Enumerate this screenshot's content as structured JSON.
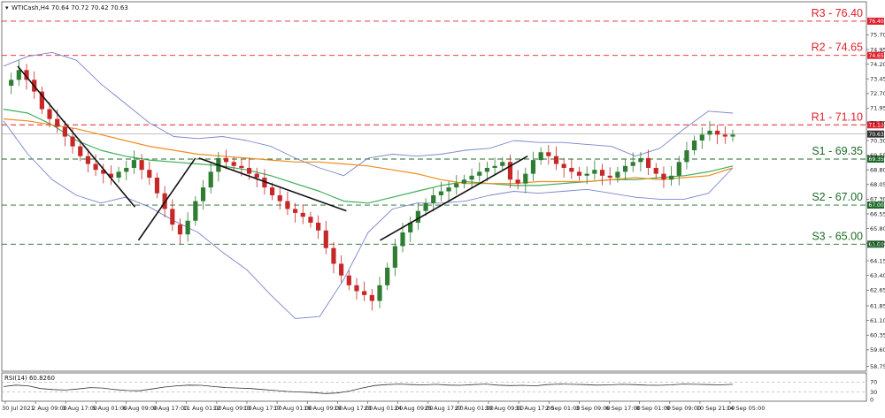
{
  "header": {
    "symbol": "WTICash,H4",
    "ohlc": "70.64 70.72 70.42 70.63"
  },
  "rsi": {
    "label": "RSI(14) 60.8260",
    "ticks": [
      "70",
      "30",
      "0"
    ]
  },
  "colors": {
    "bullish": "#2e7d32",
    "bearish": "#c62828",
    "bollinger": "#7b83c9",
    "ma_orange": "#f08c1e",
    "ma_green": "#3fae5a",
    "resistance": "#e0202a",
    "support": "#1f6b2a",
    "trendline": "#111111"
  },
  "chart_data": {
    "type": "candlestick",
    "y_axis_ticks": [
      "75.70",
      "74.95",
      "74.20",
      "73.45",
      "72.70",
      "71.95",
      "71.20",
      "70.30",
      "69.55",
      "68.80",
      "68.05",
      "67.30",
      "66.55",
      "65.80",
      "65.05",
      "64.15",
      "63.40",
      "62.65",
      "61.85",
      "61.10",
      "60.35",
      "59.60",
      "58.75"
    ],
    "y_range": [
      58.6,
      77.3
    ],
    "x_axis_ticks": [
      "30 Jul 2021",
      "2 Aug 09:00",
      "3 Aug 17:00",
      "5 Aug 01:00",
      "6 Aug 09:00",
      "9 Aug 17:00",
      "11 Aug 01:00",
      "12 Aug 09:00",
      "13 Aug 17:00",
      "17 Aug 01:00",
      "18 Aug 09:00",
      "19 Aug 17:00",
      "23 Aug 01:00",
      "24 Aug 09:00",
      "25 Aug 17:00",
      "27 Aug 01:00",
      "30 Aug 09:00",
      "31 Aug 17:00",
      "2 Sep 01:00",
      "3 Sep 09:00",
      "6 Sep 17:00",
      "8 Sep 01:00",
      "9 Sep 09:00",
      "10 Sep 21:00",
      "14 Sep 05:00"
    ],
    "levels": [
      {
        "label": "R3 - 76.40",
        "value": 76.4,
        "tag": "76.40",
        "kind": "resistance"
      },
      {
        "label": "R2 - 74.65",
        "value": 74.65,
        "tag": "74.65",
        "kind": "resistance"
      },
      {
        "label": "R1 - 71.10",
        "value": 71.1,
        "tag": "71.10",
        "kind": "resistance"
      },
      {
        "label": "S1 - 69.35",
        "value": 69.35,
        "tag": "69.35",
        "kind": "support"
      },
      {
        "label": "S2 - 67.00",
        "value": 67.0,
        "tag": "67.00",
        "kind": "support"
      },
      {
        "label": "S3 - 65.00",
        "value": 65.0,
        "tag": "65.00",
        "kind": "support"
      }
    ],
    "last_price": {
      "value": 70.63,
      "tag": "70.63"
    },
    "close_path": [
      73.1,
      73.4,
      73.9,
      73.4,
      72.8,
      71.9,
      71.4,
      71.0,
      70.5,
      70.0,
      69.5,
      69.1,
      68.8,
      68.6,
      68.4,
      68.7,
      68.9,
      69.3,
      68.8,
      68.4,
      67.6,
      66.8,
      66.0,
      65.5,
      66.2,
      67.2,
      67.9,
      68.7,
      69.4,
      69.2,
      69.0,
      68.9,
      68.6,
      68.4,
      67.9,
      67.5,
      67.2,
      66.8,
      66.6,
      66.4,
      66.1,
      65.7,
      64.8,
      64.0,
      63.4,
      62.9,
      62.6,
      62.4,
      62.1,
      62.9,
      63.8,
      64.9,
      65.6,
      66.1,
      66.7,
      67.1,
      67.5,
      67.7,
      67.9,
      68.1,
      68.3,
      68.5,
      68.7,
      68.9,
      69.0,
      69.2,
      68.3,
      68.1,
      68.6,
      69.3,
      69.7,
      69.5,
      69.1,
      68.9,
      68.7,
      68.5,
      68.6,
      68.8,
      68.5,
      68.4,
      68.7,
      69.0,
      69.2,
      69.4,
      68.9,
      68.6,
      68.3,
      68.5,
      69.2,
      69.8,
      70.3,
      70.6,
      70.8,
      70.6,
      70.5,
      70.6
    ],
    "ma_orange": [
      71.4,
      71.3,
      71.1,
      70.9,
      70.6,
      70.3,
      70.0,
      69.8,
      69.6,
      69.5,
      69.4,
      69.3,
      69.2,
      69.2,
      69.1,
      69.0,
      68.8,
      68.6,
      68.3,
      68.1,
      68.1,
      68.1,
      68.2,
      68.2,
      68.2,
      68.3,
      68.4,
      68.3,
      68.4,
      68.5,
      68.9
    ],
    "ma_green": [
      71.9,
      71.7,
      71.1,
      70.3,
      69.8,
      69.5,
      69.3,
      69.2,
      69.1,
      69.0,
      68.8,
      68.5,
      68.1,
      67.7,
      67.2,
      67.1,
      67.4,
      67.7,
      68.0,
      68.2,
      68.1,
      68.0,
      68.0,
      68.1,
      68.2,
      68.3,
      68.3,
      68.4,
      68.5,
      68.7,
      69.0
    ],
    "bb_upper": [
      74.1,
      74.6,
      74.8,
      74.4,
      73.2,
      72.2,
      71.2,
      70.5,
      70.4,
      70.5,
      70.3,
      70.0,
      69.4,
      68.9,
      68.5,
      69.4,
      69.6,
      69.5,
      69.6,
      69.8,
      69.9,
      70.3,
      70.2,
      70.2,
      70.1,
      70.0,
      69.5,
      69.9,
      70.9,
      71.8,
      71.7
    ],
    "bb_lower": [
      71.3,
      69.6,
      68.3,
      67.5,
      67.1,
      67.4,
      66.9,
      66.2,
      65.6,
      64.6,
      63.7,
      62.4,
      61.2,
      61.3,
      63.2,
      65.6,
      66.8,
      67.1,
      67.1,
      67.2,
      67.5,
      67.7,
      67.6,
      67.7,
      67.8,
      67.6,
      67.4,
      67.3,
      67.3,
      67.6,
      68.9
    ],
    "trendlines": [
      {
        "from": [
          "30 Jul 2021",
          74.1
        ],
        "to": [
          "6 Aug 09:00",
          66.9
        ]
      },
      {
        "from": [
          "6 Aug 09:00",
          65.2
        ],
        "to": [
          "11 Aug 01:00",
          69.4
        ]
      },
      {
        "from": [
          "11 Aug 01:00",
          69.4
        ],
        "to": [
          "19 Aug 17:00",
          66.7
        ]
      },
      {
        "from": [
          "23 Aug 01:00",
          65.2
        ],
        "to": [
          "31 Aug 17:00",
          69.5
        ]
      }
    ],
    "rsi_path": [
      52,
      58,
      55,
      44,
      40,
      38,
      42,
      48,
      46,
      40,
      36,
      35,
      42,
      50,
      55,
      58,
      57,
      52,
      48,
      46,
      44,
      40,
      36,
      32,
      30,
      28,
      24,
      26,
      34,
      46,
      56,
      60,
      62,
      60,
      59,
      61,
      58,
      57,
      60,
      62,
      58,
      56,
      57,
      55,
      60,
      62,
      61,
      60,
      58,
      59,
      61,
      60,
      58,
      57,
      59,
      62,
      61,
      60,
      59,
      61
    ]
  }
}
